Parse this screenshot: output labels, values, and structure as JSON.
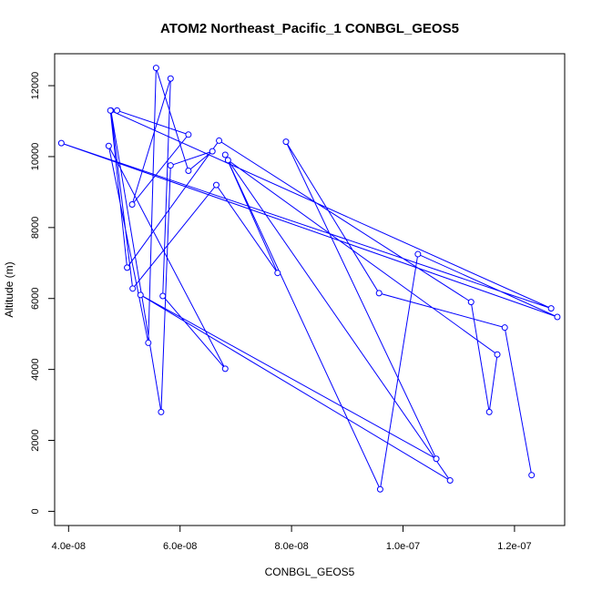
{
  "chart_data": {
    "type": "line",
    "title": "ATOM2 Northeast_Pacific_1 CONBGL_GEOS5",
    "xlabel": "CONBGL_GEOS5",
    "ylabel": "Altitude (m)",
    "xlim": [
      3.75e-08,
      1.29e-07
    ],
    "ylim": [
      -400,
      12900
    ],
    "x_ticks": [
      4e-08,
      6e-08,
      8e-08,
      1e-07,
      1.2e-07
    ],
    "x_tick_labels": [
      "4.0e-08",
      "6.0e-08",
      "8.0e-08",
      "1.0e-07",
      "1.2e-07"
    ],
    "y_ticks": [
      0,
      2000,
      4000,
      6000,
      8000,
      10000,
      12000
    ],
    "y_tick_labels": [
      "0",
      "2000",
      "4000",
      "6000",
      "8000",
      "10000",
      "12000"
    ],
    "grid": false,
    "legend": "none",
    "series": [
      {
        "color": "#0000ff",
        "marker": "open-circle",
        "x": [
          4.87e-08,
          6.15e-08,
          5.14e-08,
          5.83e-08,
          5.69e-08,
          6.81e-08,
          4.72e-08,
          5.43e-08,
          5.57e-08,
          6.15e-08,
          6.58e-08,
          5.83e-08,
          5.66e-08,
          4.76e-08,
          5.15e-08,
          6.65e-08,
          7.75e-08,
          6.81e-08,
          9.59e-08,
          1.0267e-07,
          1.2768e-07,
          3.87e-08,
          1.2657e-07,
          4.75e-08,
          5.05e-08,
          6.7e-08,
          1.1221e-07,
          1.1547e-07,
          1.1691e-07,
          6.86e-08,
          1.0844e-07,
          5.29e-08,
          1.0597e-07,
          7.9e-08,
          9.57e-08,
          1.1825e-07,
          1.2307e-07
        ],
        "y": [
          11300,
          10620,
          8650,
          12200,
          6070,
          4020,
          10300,
          4750,
          12500,
          9600,
          10150,
          9750,
          2800,
          11300,
          6280,
          9200,
          6720,
          10050,
          620,
          7250,
          5480,
          10380,
          5720,
          11300,
          6870,
          10450,
          5900,
          2800,
          4420,
          9900,
          870,
          6100,
          1480,
          10420,
          6150,
          5180,
          1020
        ]
      }
    ]
  }
}
